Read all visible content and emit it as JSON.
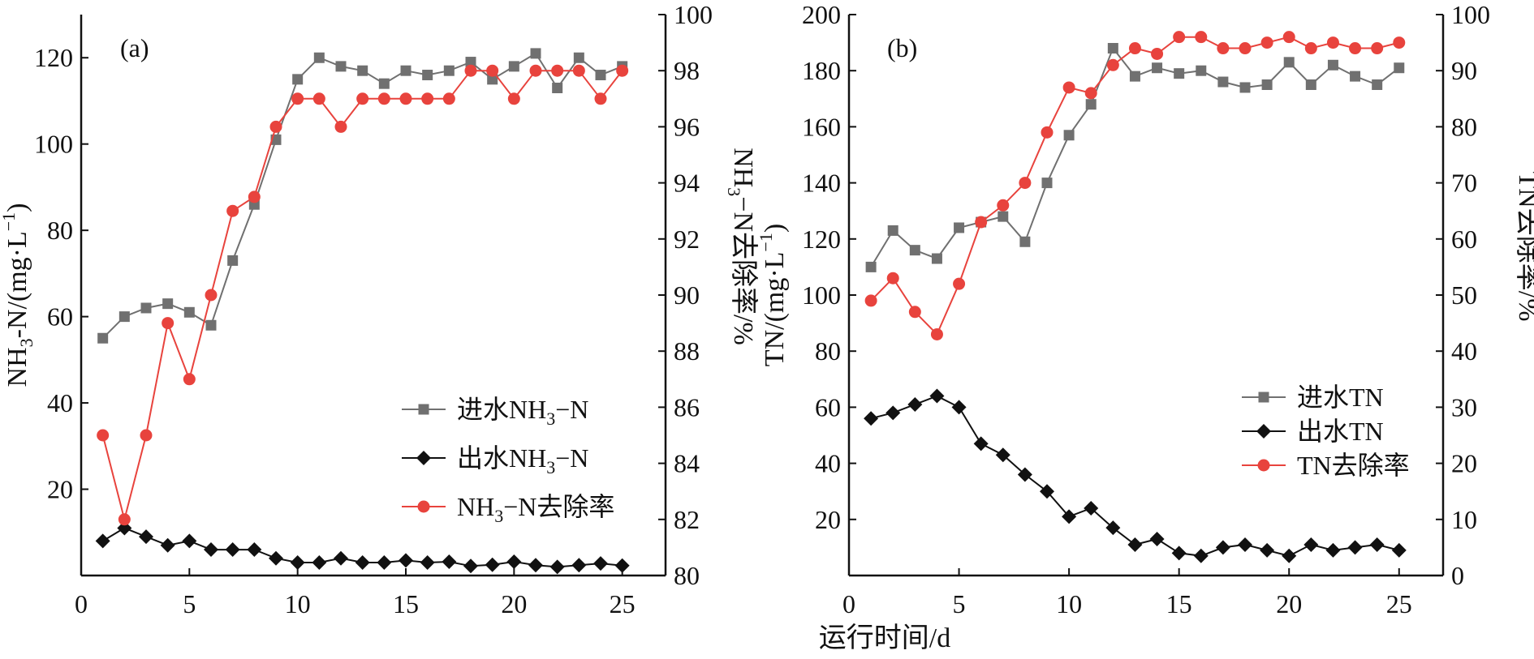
{
  "colors": {
    "influent": "#707070",
    "effluent": "#111111",
    "removal": "#e8433d"
  },
  "xlabel": "运行时间/d",
  "chart_data": [
    {
      "type": "line",
      "panel_label": "(a)",
      "ylabel_left": {
        "main": "NH",
        "sub": "3",
        "rest": "-N/(mg·L",
        "sup": "−1",
        "end": ")"
      },
      "ylabel_right": {
        "main": "NH",
        "sub": "3",
        "rest": "−N去除率/%"
      },
      "xlim": [
        0,
        27
      ],
      "x_ticks": [
        0,
        5,
        10,
        15,
        20,
        25
      ],
      "ylim_left": [
        0,
        130
      ],
      "y_ticks_left": [
        20,
        40,
        60,
        80,
        100,
        120
      ],
      "ylim_right": [
        80,
        100
      ],
      "y_ticks_right": [
        80,
        82,
        84,
        86,
        88,
        90,
        92,
        94,
        96,
        98,
        100
      ],
      "legend_position": "bottom-right",
      "x": [
        1,
        2,
        3,
        4,
        5,
        6,
        7,
        8,
        9,
        10,
        11,
        12,
        13,
        14,
        15,
        16,
        17,
        18,
        19,
        20,
        21,
        22,
        23,
        24,
        25
      ],
      "series": [
        {
          "name": "进水NH3−N",
          "legend": {
            "main": "进水NH",
            "sub": "3",
            "rest": "−N"
          },
          "axis": "left",
          "marker": "square",
          "color_key": "influent",
          "values": [
            55,
            60,
            62,
            63,
            61,
            58,
            73,
            86,
            101,
            115,
            120,
            118,
            117,
            114,
            117,
            116,
            117,
            119,
            115,
            118,
            121,
            113,
            120,
            116,
            118
          ]
        },
        {
          "name": "出水NH3−N",
          "legend": {
            "main": "出水NH",
            "sub": "3",
            "rest": "−N"
          },
          "axis": "left",
          "marker": "diamond",
          "color_key": "effluent",
          "values": [
            8,
            11,
            9,
            7,
            8,
            6,
            6,
            6,
            4,
            3,
            3,
            4,
            3,
            3,
            3.5,
            3,
            3.2,
            2.2,
            2.5,
            3.2,
            2.4,
            2,
            2.4,
            2.8,
            2.3
          ]
        },
        {
          "name": "NH3−N去除率",
          "legend": {
            "main": "NH",
            "sub": "3",
            "rest": "−N去除率"
          },
          "axis": "right",
          "marker": "circle",
          "color_key": "removal",
          "values": [
            85,
            82,
            85,
            89,
            87,
            90,
            93,
            93.5,
            96,
            97,
            97,
            96,
            97,
            97,
            97,
            97,
            97,
            98,
            98,
            97,
            98,
            98,
            98,
            97,
            98
          ]
        }
      ]
    },
    {
      "type": "line",
      "panel_label": "(b)",
      "ylabel_left": {
        "main": "TN/(mg·L",
        "sup": "−1",
        "end": ")"
      },
      "ylabel_right": {
        "main": "TN去除率/%"
      },
      "xlim": [
        0,
        27
      ],
      "x_ticks": [
        0,
        5,
        10,
        15,
        20,
        25
      ],
      "ylim_left": [
        0,
        200
      ],
      "y_ticks_left": [
        20,
        40,
        60,
        80,
        100,
        120,
        140,
        160,
        180,
        200
      ],
      "ylim_right": [
        0,
        100
      ],
      "y_ticks_right": [
        0,
        10,
        20,
        30,
        40,
        50,
        60,
        70,
        80,
        90,
        100
      ],
      "legend_position": "center-right",
      "x": [
        1,
        2,
        3,
        4,
        5,
        6,
        7,
        8,
        9,
        10,
        11,
        12,
        13,
        14,
        15,
        16,
        17,
        18,
        19,
        20,
        21,
        22,
        23,
        24,
        25
      ],
      "series": [
        {
          "name": "进水TN",
          "legend": {
            "main": "进水TN"
          },
          "axis": "left",
          "marker": "square",
          "color_key": "influent",
          "values": [
            110,
            123,
            116,
            113,
            124,
            126,
            128,
            119,
            140,
            157,
            168,
            188,
            178,
            181,
            179,
            180,
            176,
            174,
            175,
            183,
            175,
            182,
            178,
            175,
            181
          ]
        },
        {
          "name": "出水TN",
          "legend": {
            "main": "出水TN"
          },
          "axis": "left",
          "marker": "diamond",
          "color_key": "effluent",
          "values": [
            56,
            58,
            61,
            64,
            60,
            47,
            43,
            36,
            30,
            21,
            24,
            17,
            11,
            13,
            8,
            7,
            10,
            11,
            9,
            7,
            11,
            9,
            10,
            11,
            9
          ]
        },
        {
          "name": "TN去除率",
          "legend": {
            "main": "TN去除率"
          },
          "axis": "right",
          "marker": "circle",
          "color_key": "removal",
          "values": [
            49,
            53,
            47,
            43,
            52,
            63,
            66,
            70,
            79,
            87,
            86,
            91,
            94,
            93,
            96,
            96,
            94,
            94,
            95,
            96,
            94,
            95,
            94,
            94,
            95
          ]
        }
      ]
    }
  ]
}
